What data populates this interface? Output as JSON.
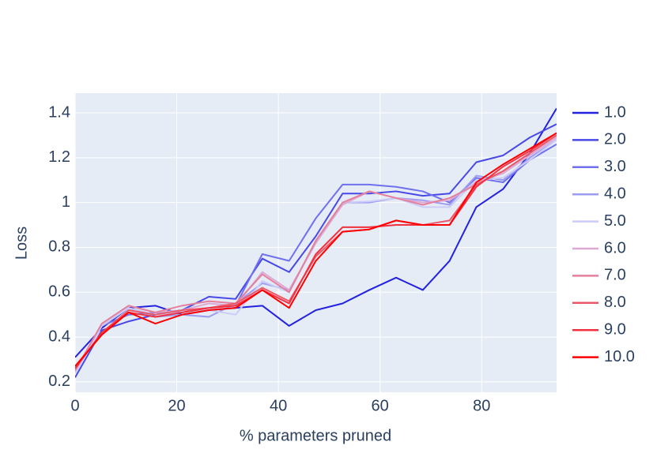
{
  "chart_data": {
    "type": "line",
    "xlabel": "% parameters pruned",
    "ylabel": "Loss",
    "x": [
      0,
      5.26,
      10.53,
      15.79,
      21.05,
      26.32,
      31.58,
      36.84,
      42.11,
      47.37,
      52.63,
      57.89,
      63.16,
      68.42,
      73.68,
      78.95,
      84.21,
      89.47,
      94.74
    ],
    "xlim": [
      0,
      94.74
    ],
    "xticks": [
      0,
      20,
      40,
      60,
      80
    ],
    "ylim": [
      0.154,
      1.488
    ],
    "yticks": [
      0.2,
      0.4,
      0.6,
      0.8,
      1,
      1.2,
      1.4
    ],
    "grid": true,
    "legend": "right",
    "series": [
      {
        "name": "1.0",
        "color": "#2222e0",
        "values": [
          0.31,
          0.44,
          0.53,
          0.54,
          0.5,
          0.52,
          0.53,
          0.54,
          0.45,
          0.52,
          0.55,
          0.61,
          0.665,
          0.61,
          0.74,
          0.98,
          1.06,
          1.22,
          1.42
        ]
      },
      {
        "name": "2.0",
        "color": "#4848e8",
        "values": [
          0.22,
          0.43,
          0.47,
          0.5,
          0.52,
          0.58,
          0.57,
          0.75,
          0.69,
          0.85,
          1.04,
          1.04,
          1.05,
          1.03,
          1.04,
          1.18,
          1.21,
          1.29,
          1.35
        ]
      },
      {
        "name": "3.0",
        "color": "#7070ee",
        "values": [
          0.24,
          0.45,
          0.5,
          0.51,
          0.51,
          0.53,
          0.54,
          0.77,
          0.74,
          0.93,
          1.08,
          1.08,
          1.07,
          1.05,
          1.0,
          1.11,
          1.09,
          1.19,
          1.26
        ]
      },
      {
        "name": "4.0",
        "color": "#9c9cf2",
        "values": [
          0.24,
          0.45,
          0.53,
          0.49,
          0.5,
          0.49,
          0.55,
          0.64,
          0.61,
          0.82,
          1.0,
          1.0,
          1.02,
          1.01,
          0.99,
          1.12,
          1.1,
          1.2,
          1.28
        ]
      },
      {
        "name": "5.0",
        "color": "#ccccf8",
        "values": [
          0.24,
          0.45,
          0.53,
          0.5,
          0.51,
          0.52,
          0.5,
          0.65,
          0.6,
          0.83,
          1.0,
          1.005,
          1.02,
          0.98,
          0.98,
          1.1,
          1.11,
          1.19,
          1.28
        ]
      },
      {
        "name": "6.0",
        "color": "#dca8d4",
        "values": [
          0.25,
          0.46,
          0.54,
          0.51,
          0.52,
          0.55,
          0.54,
          0.69,
          0.61,
          0.82,
          0.99,
          1.05,
          1.02,
          1.0,
          1.01,
          1.09,
          1.13,
          1.21,
          1.29
        ]
      },
      {
        "name": "7.0",
        "color": "#e4809c",
        "values": [
          0.25,
          0.46,
          0.54,
          0.51,
          0.54,
          0.56,
          0.55,
          0.68,
          0.6,
          0.83,
          1.0,
          1.05,
          1.02,
          0.99,
          1.02,
          1.08,
          1.14,
          1.22,
          1.3
        ]
      },
      {
        "name": "8.0",
        "color": "#ea5868",
        "values": [
          0.26,
          0.42,
          0.52,
          0.5,
          0.52,
          0.53,
          0.55,
          0.62,
          0.56,
          0.76,
          0.87,
          0.88,
          0.92,
          0.9,
          0.92,
          1.08,
          1.14,
          1.22,
          1.3
        ]
      },
      {
        "name": "9.0",
        "color": "#f23040",
        "values": [
          0.26,
          0.42,
          0.51,
          0.49,
          0.51,
          0.53,
          0.54,
          0.61,
          0.55,
          0.77,
          0.89,
          0.89,
          0.9,
          0.9,
          0.9,
          1.07,
          1.16,
          1.23,
          1.31
        ]
      },
      {
        "name": "10.0",
        "color": "#ff0000",
        "values": [
          0.27,
          0.41,
          0.51,
          0.46,
          0.5,
          0.52,
          0.53,
          0.61,
          0.53,
          0.74,
          0.87,
          0.88,
          0.92,
          0.9,
          0.9,
          1.09,
          1.17,
          1.24,
          1.31
        ]
      }
    ]
  }
}
